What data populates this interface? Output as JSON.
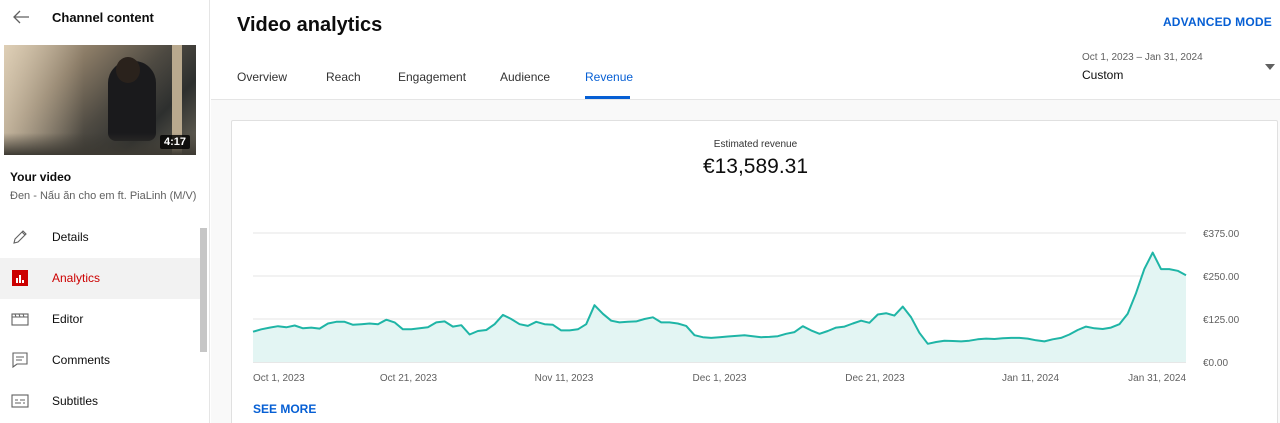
{
  "sidebar": {
    "title": "Channel content",
    "duration": "4:17",
    "your_video_label": "Your video",
    "video_title": "Đen - Nấu ăn cho em ft. PiaLinh (M/V)",
    "items": [
      {
        "label": "Details",
        "icon": "pencil-icon"
      },
      {
        "label": "Analytics",
        "icon": "analytics-icon",
        "active": true
      },
      {
        "label": "Editor",
        "icon": "clapperboard-icon"
      },
      {
        "label": "Comments",
        "icon": "comment-icon"
      },
      {
        "label": "Subtitles",
        "icon": "subtitles-icon"
      }
    ]
  },
  "header": {
    "title": "Video analytics",
    "advanced_mode": "ADVANCED MODE",
    "tabs": [
      {
        "label": "Overview"
      },
      {
        "label": "Reach"
      },
      {
        "label": "Engagement"
      },
      {
        "label": "Audience"
      },
      {
        "label": "Revenue",
        "active": true
      }
    ],
    "date_range": {
      "range": "Oct 1, 2023 – Jan 31, 2024",
      "mode": "Custom"
    }
  },
  "card": {
    "metric_label": "Estimated revenue",
    "metric_value": "€13,589.31",
    "see_more": "SEE MORE"
  },
  "colors": {
    "accent": "#065fd4",
    "active_nav": "#cc0000",
    "line": "#1fb5a6",
    "area": "#e3f5f3"
  },
  "chart_data": {
    "type": "area",
    "x_start": "2023-10-01",
    "x_end": "2024-01-31",
    "x_ticks": [
      "Oct 1, 2023",
      "Oct 21, 2023",
      "Nov 11, 2023",
      "Dec 1, 2023",
      "Dec 21, 2023",
      "Jan 11, 2024",
      "Jan 31, 2024"
    ],
    "y_ticks": [
      "€375.00",
      "€250.00",
      "€125.00",
      "€0.00"
    ],
    "ylim": [
      0,
      375
    ],
    "grid": true,
    "series": [
      {
        "values": [
          88,
          95,
          100,
          104,
          101,
          106,
          98,
          100,
          97,
          112,
          117,
          117,
          108,
          110,
          112,
          110,
          123,
          115,
          95,
          95,
          98,
          101,
          115,
          118,
          103,
          107,
          80,
          90,
          93,
          110,
          137,
          125,
          110,
          105,
          117,
          110,
          108,
          92,
          92,
          95,
          110,
          165,
          140,
          120,
          115,
          117,
          118,
          125,
          130,
          115,
          115,
          112,
          105,
          78,
          72,
          70,
          72,
          74,
          76,
          78,
          75,
          72,
          73,
          75,
          82,
          87,
          104,
          92,
          82,
          90,
          100,
          103,
          112,
          120,
          114,
          138,
          142,
          135,
          161,
          130,
          85,
          53,
          58,
          62,
          61,
          60,
          62,
          66,
          68,
          67,
          69,
          70,
          70,
          68,
          63,
          60,
          66,
          70,
          80,
          93,
          103,
          98,
          96,
          100,
          110,
          140,
          200,
          270,
          318,
          270,
          270,
          265,
          252
        ]
      }
    ]
  }
}
